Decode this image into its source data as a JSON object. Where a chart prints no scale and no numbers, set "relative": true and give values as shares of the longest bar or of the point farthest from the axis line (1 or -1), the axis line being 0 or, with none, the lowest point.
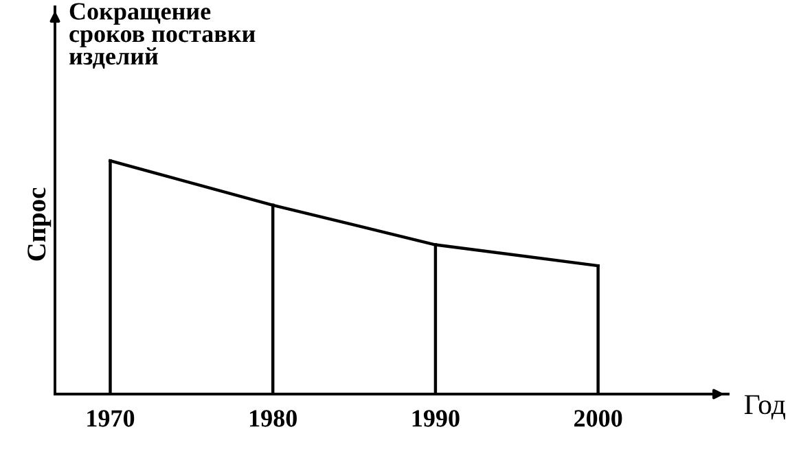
{
  "chart_data": {
    "type": "line",
    "title": "Сокращение\nсроков поставки\nизделий",
    "xlabel": "Год",
    "ylabel": "Спрос",
    "relative": true,
    "categories": [
      "1970",
      "1980",
      "1990",
      "2000"
    ],
    "series": [
      {
        "color": "#000000",
        "values": [
          1,
          0.81,
          0.64,
          0.55
        ]
      }
    ],
    "ref_lines": [
      {
        "axis": "x",
        "value": "1970",
        "color": "#000000"
      },
      {
        "axis": "x",
        "value": "1980",
        "color": "#000000"
      },
      {
        "axis": "x",
        "value": "2000",
        "color": "#000000"
      },
      {
        "axis": "x",
        "value": "1990",
        "color": "#000000"
      }
    ]
  }
}
